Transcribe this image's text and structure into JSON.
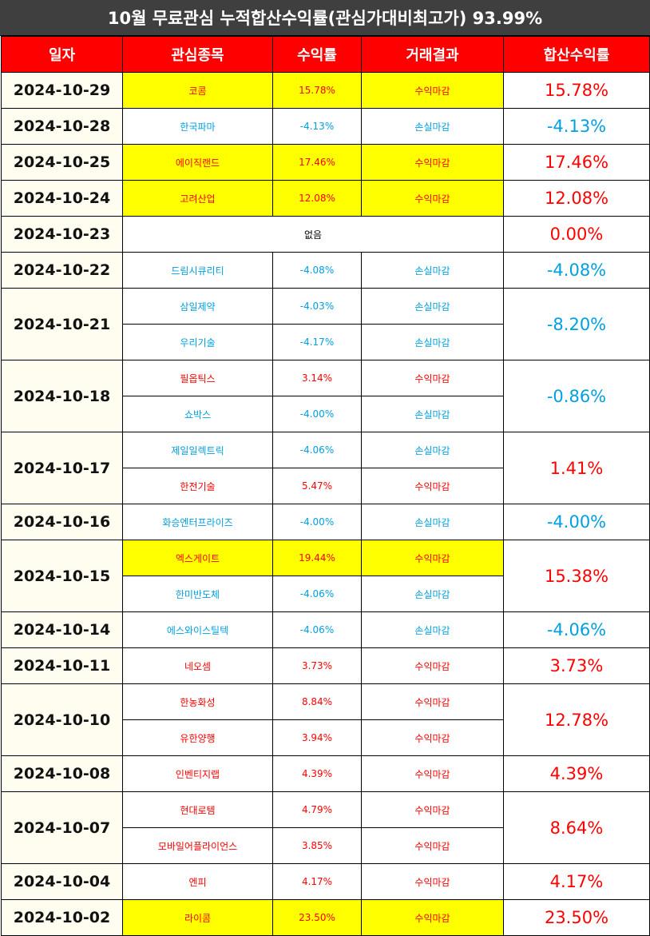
{
  "title": "10월 무료관심 누적합산수익률(관심가대비최고가) 93.99%",
  "headers": [
    "일자",
    "관심종목",
    "수익률",
    "거래결과",
    "합산수익률"
  ],
  "colors": {
    "header_bg": "#ff0000",
    "title_bg": "#3f3f3f",
    "positive": "#ff0000",
    "negative": "#00a0e0",
    "highlight": "#ffff00"
  },
  "groups": [
    {
      "date": "2024-10-29",
      "total": "15.78%",
      "total_sign": "pos",
      "items": [
        {
          "name": "코콤",
          "rate": "15.78%",
          "result": "수익마감",
          "sign": "pos",
          "highlight": true
        }
      ]
    },
    {
      "date": "2024-10-28",
      "total": "-4.13%",
      "total_sign": "neg",
      "items": [
        {
          "name": "한국파마",
          "rate": "-4.13%",
          "result": "손실마감",
          "sign": "neg",
          "highlight": false
        }
      ]
    },
    {
      "date": "2024-10-25",
      "total": "17.46%",
      "total_sign": "pos",
      "items": [
        {
          "name": "에이직랜드",
          "rate": "17.46%",
          "result": "수익마감",
          "sign": "pos",
          "highlight": true
        }
      ]
    },
    {
      "date": "2024-10-24",
      "total": "12.08%",
      "total_sign": "pos",
      "items": [
        {
          "name": "고려산업",
          "rate": "12.08%",
          "result": "수익마감",
          "sign": "pos",
          "highlight": true
        }
      ]
    },
    {
      "date": "2024-10-23",
      "total": "0.00%",
      "total_sign": "pos",
      "none": "없음",
      "items": []
    },
    {
      "date": "2024-10-22",
      "total": "-4.08%",
      "total_sign": "neg",
      "items": [
        {
          "name": "드림시큐리티",
          "rate": "-4.08%",
          "result": "손실마감",
          "sign": "neg",
          "highlight": false
        }
      ]
    },
    {
      "date": "2024-10-21",
      "total": "-8.20%",
      "total_sign": "neg",
      "items": [
        {
          "name": "삼일제약",
          "rate": "-4.03%",
          "result": "손실마감",
          "sign": "neg",
          "highlight": false
        },
        {
          "name": "우리기술",
          "rate": "-4.17%",
          "result": "손실마감",
          "sign": "neg",
          "highlight": false
        }
      ]
    },
    {
      "date": "2024-10-18",
      "total": "-0.86%",
      "total_sign": "neg",
      "items": [
        {
          "name": "필옵틱스",
          "rate": "3.14%",
          "result": "수익마감",
          "sign": "pos",
          "highlight": false
        },
        {
          "name": "쇼박스",
          "rate": "-4.00%",
          "result": "손실마감",
          "sign": "neg",
          "highlight": false
        }
      ]
    },
    {
      "date": "2024-10-17",
      "total": "1.41%",
      "total_sign": "pos",
      "items": [
        {
          "name": "제일일렉트릭",
          "rate": "-4.06%",
          "result": "손실마감",
          "sign": "neg",
          "highlight": false
        },
        {
          "name": "한전기술",
          "rate": "5.47%",
          "result": "수익마감",
          "sign": "pos",
          "highlight": false
        }
      ]
    },
    {
      "date": "2024-10-16",
      "total": "-4.00%",
      "total_sign": "neg",
      "items": [
        {
          "name": "화승엔터프라이즈",
          "rate": "-4.00%",
          "result": "손실마감",
          "sign": "neg",
          "highlight": false
        }
      ]
    },
    {
      "date": "2024-10-15",
      "total": "15.38%",
      "total_sign": "pos",
      "items": [
        {
          "name": "엑스게이트",
          "rate": "19.44%",
          "result": "수익마감",
          "sign": "pos",
          "highlight": true
        },
        {
          "name": "한미반도체",
          "rate": "-4.06%",
          "result": "손실마감",
          "sign": "neg",
          "highlight": false
        }
      ]
    },
    {
      "date": "2024-10-14",
      "total": "-4.06%",
      "total_sign": "neg",
      "items": [
        {
          "name": "에스와이스틸텍",
          "rate": "-4.06%",
          "result": "손실마감",
          "sign": "neg",
          "highlight": false
        }
      ]
    },
    {
      "date": "2024-10-11",
      "total": "3.73%",
      "total_sign": "pos",
      "items": [
        {
          "name": "네오셈",
          "rate": "3.73%",
          "result": "수익마감",
          "sign": "pos",
          "highlight": false
        }
      ]
    },
    {
      "date": "2024-10-10",
      "total": "12.78%",
      "total_sign": "pos",
      "items": [
        {
          "name": "한농화성",
          "rate": "8.84%",
          "result": "수익마감",
          "sign": "pos",
          "highlight": false
        },
        {
          "name": "유한양행",
          "rate": "3.94%",
          "result": "수익마감",
          "sign": "pos",
          "highlight": false
        }
      ]
    },
    {
      "date": "2024-10-08",
      "total": "4.39%",
      "total_sign": "pos",
      "items": [
        {
          "name": "인벤티지랩",
          "rate": "4.39%",
          "result": "수익마감",
          "sign": "pos",
          "highlight": false
        }
      ]
    },
    {
      "date": "2024-10-07",
      "total": "8.64%",
      "total_sign": "pos",
      "items": [
        {
          "name": "현대로템",
          "rate": "4.79%",
          "result": "수익마감",
          "sign": "pos",
          "highlight": false
        },
        {
          "name": "모바일어플라이언스",
          "rate": "3.85%",
          "result": "수익마감",
          "sign": "pos",
          "highlight": false
        }
      ]
    },
    {
      "date": "2024-10-04",
      "total": "4.17%",
      "total_sign": "pos",
      "items": [
        {
          "name": "엔피",
          "rate": "4.17%",
          "result": "수익마감",
          "sign": "pos",
          "highlight": false
        }
      ]
    },
    {
      "date": "2024-10-02",
      "total": "23.50%",
      "total_sign": "pos",
      "items": [
        {
          "name": "라이콤",
          "rate": "23.50%",
          "result": "수익마감",
          "sign": "pos",
          "highlight": true
        }
      ]
    }
  ]
}
